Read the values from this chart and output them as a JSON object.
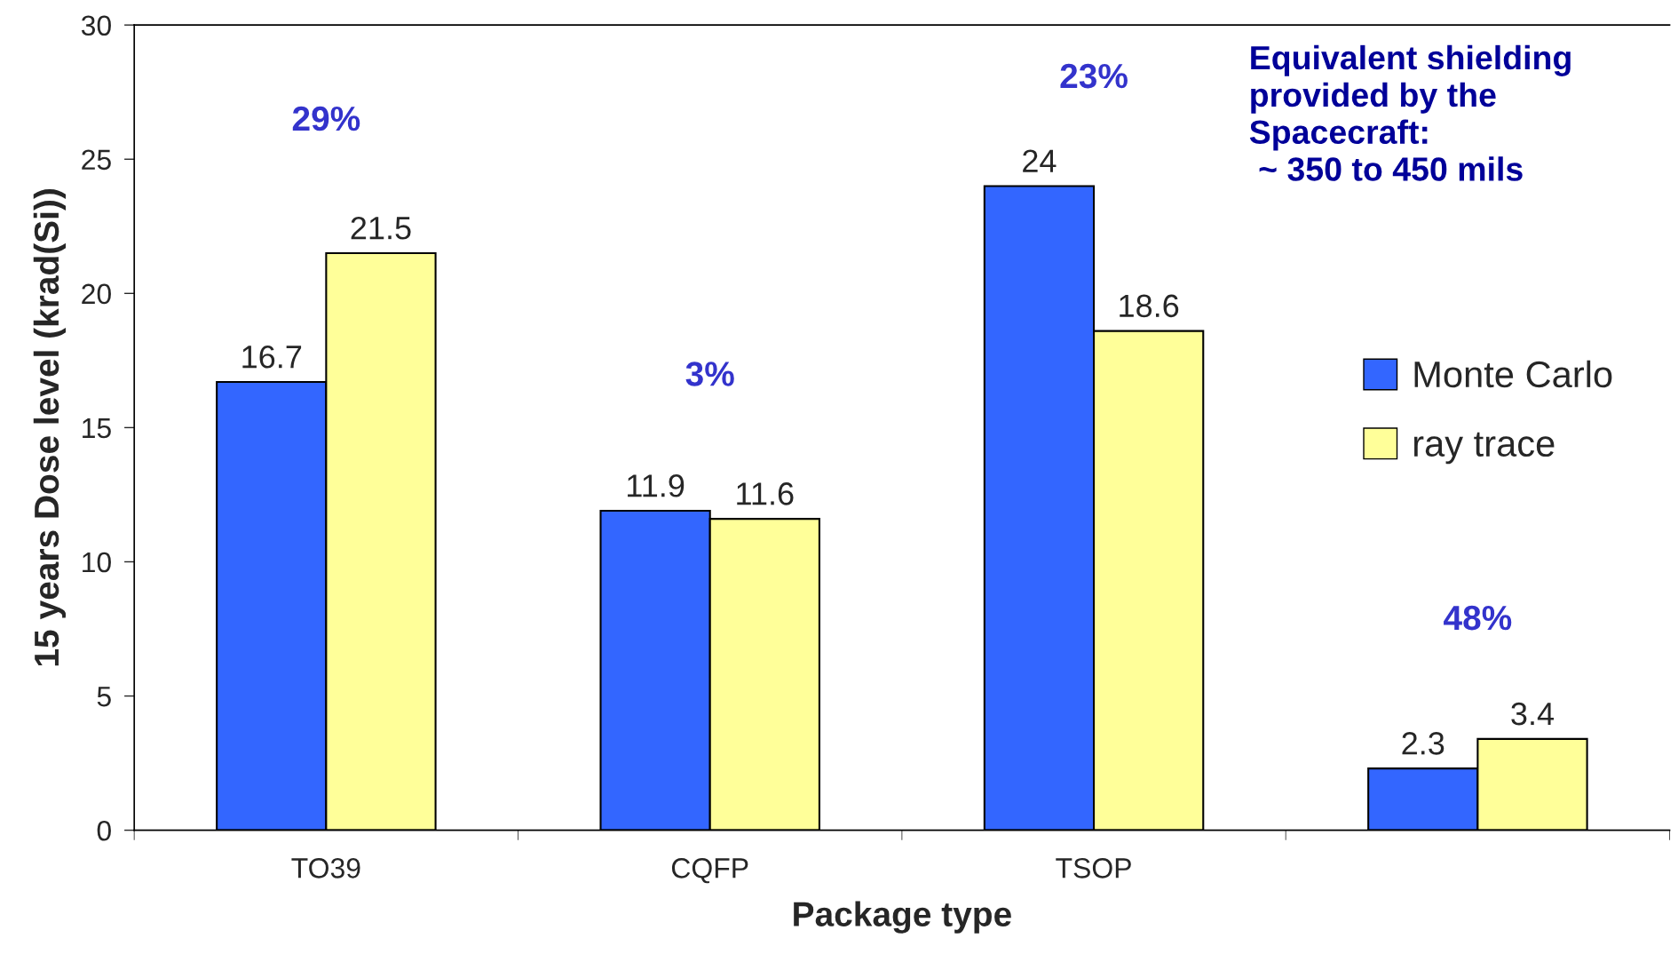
{
  "chart_data": {
    "type": "bar",
    "xlabel": "Package type",
    "ylabel": "15 years Dose level (krad(Si))",
    "categories": [
      "TO39",
      "CQFP",
      "TSOP",
      null
    ],
    "series": [
      {
        "name": "Monte Carlo",
        "color": "#3366ff",
        "values": [
          16.7,
          11.9,
          24,
          2.3
        ]
      },
      {
        "name": "ray trace",
        "color": "#ffff99",
        "values": [
          21.5,
          11.6,
          18.6,
          3.4
        ]
      }
    ],
    "ylim": [
      0,
      30
    ],
    "yticks": [
      0,
      5,
      10,
      15,
      20,
      25,
      30
    ],
    "data_labels": true,
    "grid": false,
    "legend": "right",
    "annotations": [
      "29%",
      "3%",
      "23%",
      "48%",
      "Equivalent shielding\nprovided by the\nSpacecraft:\n ~ 350 to 450 mils"
    ]
  }
}
